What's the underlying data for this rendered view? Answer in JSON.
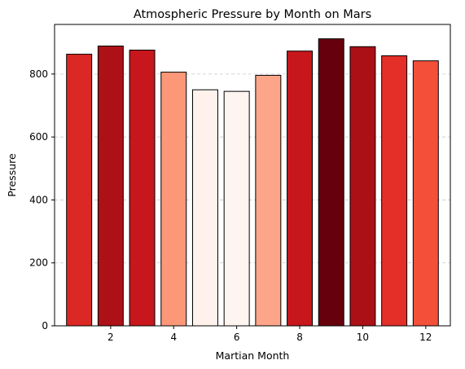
{
  "chart_data": {
    "type": "bar",
    "title": "Atmospheric Pressure by Month on Mars",
    "xlabel": "Martian Month",
    "ylabel": "Pressure",
    "x": [
      1,
      2,
      3,
      4,
      5,
      6,
      7,
      8,
      9,
      10,
      11,
      12
    ],
    "values": [
      863,
      889,
      876,
      806,
      750,
      745,
      796,
      873,
      912,
      887,
      858,
      842
    ],
    "colors": [
      "#db2824",
      "#ad1117",
      "#c7171c",
      "#fc9777",
      "#fff2ec",
      "#fff5f0",
      "#fca589",
      "#c8171c",
      "#67000d",
      "#ab1016",
      "#e32f27",
      "#f44f39"
    ],
    "edge_color": "#000000",
    "xticks": [
      2,
      4,
      6,
      8,
      10,
      12
    ],
    "xlim": [
      0.22,
      12.78
    ],
    "yticks": [
      0,
      200,
      400,
      600,
      800
    ],
    "ylim": [
      0,
      957.6
    ],
    "grid": {
      "axis": "y",
      "style": "dashed",
      "color": "#c8c8c8"
    }
  }
}
